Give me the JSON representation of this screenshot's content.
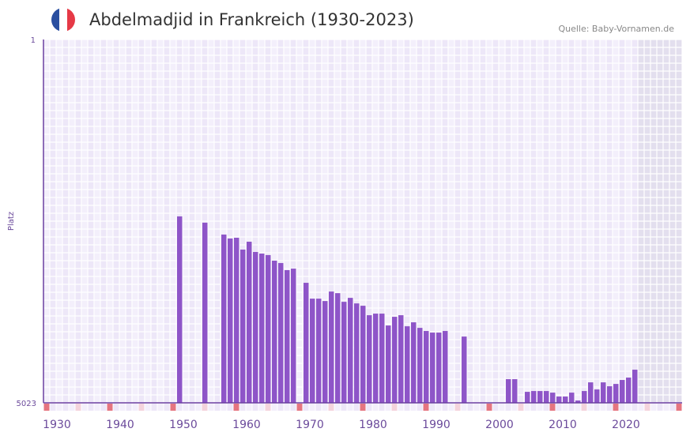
{
  "header": {
    "title": "Abdelmadjid in Frankreich (1930-2023)",
    "source": "Quelle: Baby-Vornamen.de",
    "flag_colors": [
      "#2a4fa0",
      "#ffffff",
      "#e63946"
    ]
  },
  "colors": {
    "bar": "#8e55c8",
    "axis": "#6a3ea1",
    "label": "#6b4a9b",
    "marker": "#e57580",
    "marker_light": "#f4d3dc",
    "grid_bg_a": "#f3effb",
    "grid_bg_b": "#ede7f8",
    "future": "#e3dfee"
  },
  "chart_data": {
    "type": "bar",
    "title": "Abdelmadjid in Frankreich (1930-2023)",
    "ylabel": "Platz",
    "xlabel": "",
    "ylim": [
      5023,
      1
    ],
    "ytick_labels": [
      "1",
      "5023"
    ],
    "xlim": [
      1930,
      2030
    ],
    "xtick_labels": [
      "1930",
      "1940",
      "1950",
      "1960",
      "1970",
      "1980",
      "1990",
      "2000",
      "2010",
      "2020"
    ],
    "x": [
      1951,
      1955,
      1958,
      1959,
      1960,
      1961,
      1962,
      1963,
      1964,
      1965,
      1966,
      1967,
      1968,
      1969,
      1971,
      1972,
      1973,
      1974,
      1975,
      1976,
      1977,
      1978,
      1979,
      1980,
      1981,
      1982,
      1983,
      1984,
      1985,
      1986,
      1987,
      1988,
      1989,
      1990,
      1991,
      1992,
      1993,
      1996,
      2003,
      2004,
      2006,
      2007,
      2008,
      2009,
      2010,
      2011,
      2012,
      2013,
      2014,
      2015,
      2016,
      2017,
      2018,
      2019,
      2020,
      2021,
      2022,
      2023
    ],
    "values": [
      2446,
      2533,
      2697,
      2752,
      2741,
      2905,
      2796,
      2938,
      2960,
      2981,
      3058,
      3091,
      3189,
      3168,
      3364,
      3583,
      3583,
      3616,
      3485,
      3507,
      3627,
      3572,
      3649,
      3681,
      3812,
      3790,
      3790,
      3954,
      3834,
      3812,
      3965,
      3910,
      3987,
      4030,
      4052,
      4052,
      4030,
      4107,
      4696,
      4696,
      4871,
      4860,
      4860,
      4860,
      4882,
      4936,
      4936,
      4882,
      4991,
      4860,
      4740,
      4838,
      4740,
      4794,
      4762,
      4707,
      4674,
      4565
    ]
  }
}
